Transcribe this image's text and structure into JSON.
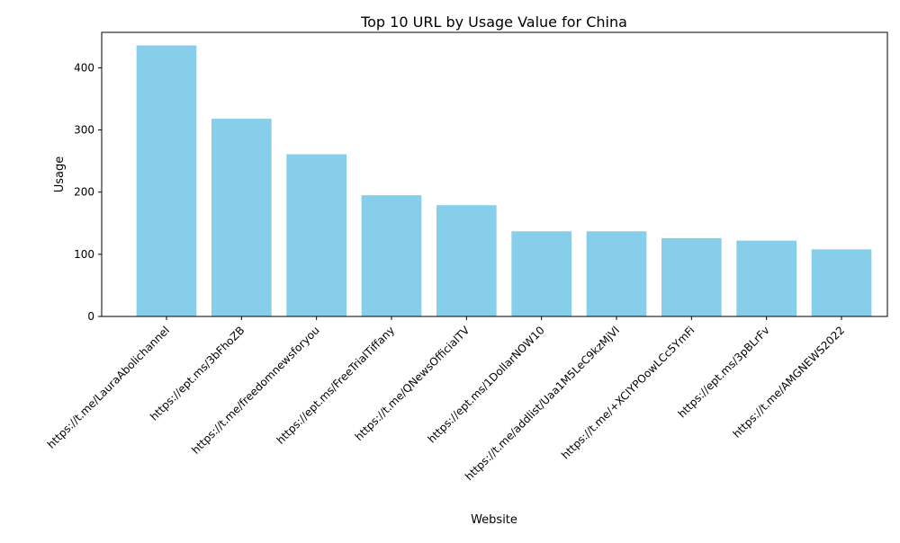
{
  "chart_data": {
    "type": "bar",
    "title": "Top 10 URL by Usage Value for China",
    "xlabel": "Website",
    "ylabel": "Usage",
    "categories": [
      "https://t.me/LauraAbolichannel",
      "https://ept.ms/3bFhoZB",
      "https://t.me/freedomnewsforyou",
      "https://ept.ms/FreeTrialTiffany",
      "https://t.me/QNewsOfficialTV",
      "https://ept.ms/1DollarNOW10",
      "https://t.me/addlist/Uaa1M5LeC9kzMjVl",
      "https://t.me/+XCIYPOowLCc5YmFi",
      "https://ept.ms/3pBLrFv",
      "https://t.me/AMGNEWS2022"
    ],
    "values": [
      436,
      318,
      261,
      195,
      179,
      137,
      137,
      126,
      122,
      108
    ],
    "ylim": [
      0,
      457
    ],
    "yticks": [
      0,
      100,
      200,
      300,
      400
    ],
    "bar_color": "#87CEEB",
    "grid": false,
    "legend": "none"
  }
}
